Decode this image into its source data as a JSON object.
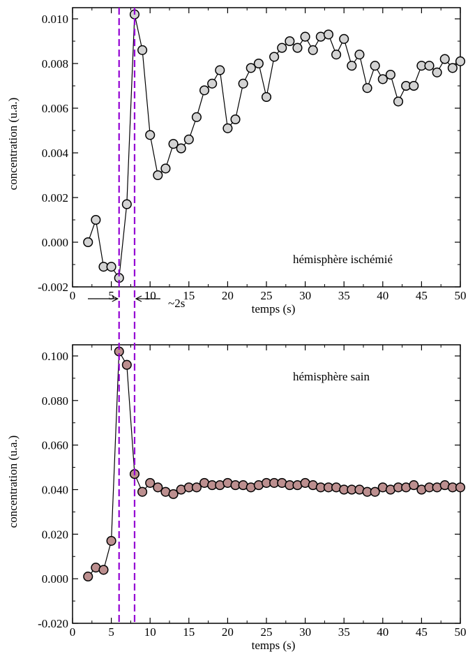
{
  "chart_data": [
    {
      "type": "line",
      "xlabel": "temps (s)",
      "ylabel": "concentration (u.a.)",
      "xlim": [
        0,
        50
      ],
      "ylim": [
        -0.002,
        0.0105
      ],
      "xticks": [
        "0",
        "5",
        "10",
        "15",
        "20",
        "25",
        "30",
        "35",
        "40",
        "45",
        "50"
      ],
      "yticks": [
        "-0.002",
        "0.000",
        "0.002",
        "0.004",
        "0.006",
        "0.008",
        "0.010"
      ],
      "annotation": "hémisphère ischémié",
      "vlines": [
        6,
        8
      ],
      "arrow_label": "~2s",
      "marker_color": "#d3d3d3",
      "line_color": "#000000",
      "vline_color": "#9400d3",
      "series": [
        {
          "x": [
            2,
            3,
            4,
            5,
            6,
            7,
            8,
            9,
            10,
            11,
            12,
            13,
            14,
            15,
            16,
            17,
            18,
            19,
            20,
            21,
            22,
            23,
            24,
            25,
            26,
            27,
            28,
            29,
            30,
            31,
            32,
            33,
            34,
            35,
            36,
            37,
            38,
            39,
            40,
            41,
            42,
            43,
            44,
            45,
            46,
            47,
            48,
            49,
            50
          ],
          "y": [
            0.0,
            0.001,
            -0.0011,
            -0.0011,
            -0.0016,
            0.0017,
            0.0102,
            0.0086,
            0.0048,
            0.003,
            0.0033,
            0.0044,
            0.0042,
            0.0046,
            0.0056,
            0.0068,
            0.0071,
            0.0077,
            0.0051,
            0.0055,
            0.0071,
            0.0078,
            0.008,
            0.0065,
            0.0083,
            0.0087,
            0.009,
            0.0087,
            0.0092,
            0.0086,
            0.0092,
            0.0093,
            0.0084,
            0.0091,
            0.0079,
            0.0084,
            0.0069,
            0.0079,
            0.0073,
            0.0075,
            0.0063,
            0.007,
            0.007,
            0.0079,
            0.0079,
            0.0076,
            0.0082,
            0.0078,
            0.0081
          ]
        }
      ]
    },
    {
      "type": "line",
      "xlabel": "temps (s)",
      "ylabel": "concentration (u.a.)",
      "xlim": [
        0,
        50
      ],
      "ylim": [
        -0.02,
        0.105
      ],
      "xticks": [
        "0",
        "5",
        "10",
        "15",
        "20",
        "25",
        "30",
        "35",
        "40",
        "45",
        "50"
      ],
      "yticks": [
        "-0.020",
        "0.000",
        "0.020",
        "0.040",
        "0.060",
        "0.080",
        "0.100"
      ],
      "annotation": "hémisphère sain",
      "vlines": [
        6,
        8
      ],
      "marker_color": "#bc8f8f",
      "line_color": "#000000",
      "vline_color": "#9400d3",
      "series": [
        {
          "x": [
            2,
            3,
            4,
            5,
            6,
            7,
            8,
            9,
            10,
            11,
            12,
            13,
            14,
            15,
            16,
            17,
            18,
            19,
            20,
            21,
            22,
            23,
            24,
            25,
            26,
            27,
            28,
            29,
            30,
            31,
            32,
            33,
            34,
            35,
            36,
            37,
            38,
            39,
            40,
            41,
            42,
            43,
            44,
            45,
            46,
            47,
            48,
            49,
            50
          ],
          "y": [
            0.001,
            0.005,
            0.004,
            0.017,
            0.102,
            0.096,
            0.047,
            0.039,
            0.043,
            0.041,
            0.039,
            0.038,
            0.04,
            0.041,
            0.041,
            0.043,
            0.042,
            0.042,
            0.043,
            0.042,
            0.042,
            0.041,
            0.042,
            0.043,
            0.043,
            0.043,
            0.042,
            0.042,
            0.043,
            0.042,
            0.041,
            0.041,
            0.041,
            0.04,
            0.04,
            0.04,
            0.039,
            0.039,
            0.041,
            0.04,
            0.041,
            0.041,
            0.042,
            0.04,
            0.041,
            0.041,
            0.042,
            0.041,
            0.041
          ]
        }
      ]
    }
  ]
}
